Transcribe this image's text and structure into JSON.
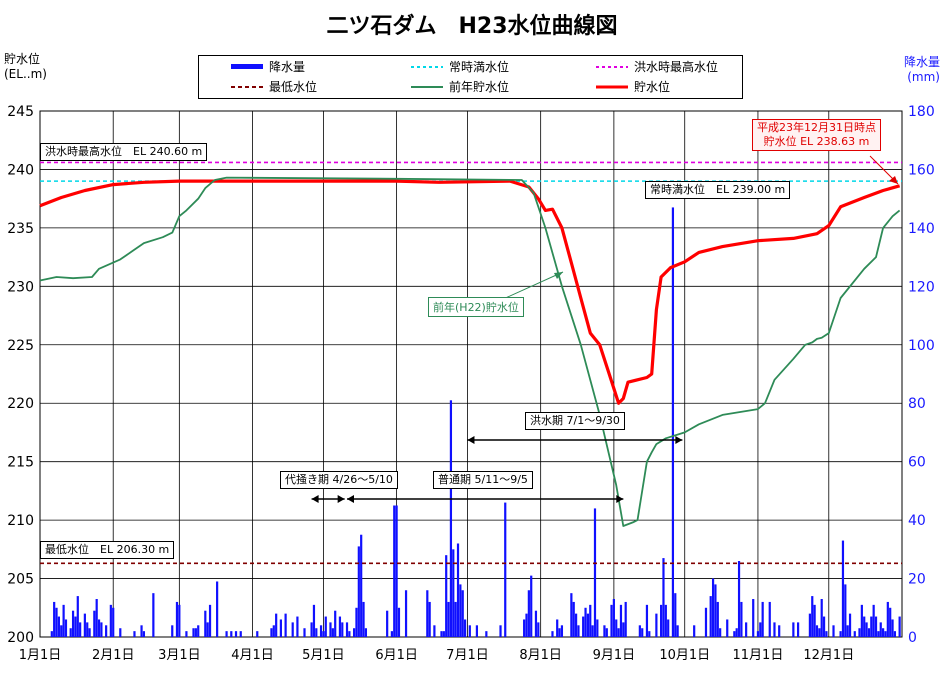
{
  "chart_data": {
    "type": "bar+line",
    "title": "二ツ石ダム　H23水位曲線図",
    "left_axis_title": [
      "貯水位",
      "(EL..m)"
    ],
    "right_axis_title": [
      "降水量",
      "(mm)"
    ],
    "ylim_left": [
      200,
      245
    ],
    "yticks_left": [
      "200",
      "205",
      "210",
      "215",
      "220",
      "225",
      "230",
      "235",
      "240",
      "245"
    ],
    "ylim_right": [
      0,
      180
    ],
    "yticks_right": [
      "0",
      "20",
      "40",
      "60",
      "80",
      "100",
      "120",
      "140",
      "160",
      "180"
    ],
    "xlim": [
      1,
      366
    ],
    "x_unit": "day_of_year_2011",
    "month_labels": [
      "1月1日",
      "2月1日",
      "3月1日",
      "4月1日",
      "5月1日",
      "6月1日",
      "7月1日",
      "8月1日",
      "9月1日",
      "10月1日",
      "11月1日",
      "12月1日"
    ],
    "month_days": [
      1,
      32,
      60,
      91,
      121,
      152,
      182,
      213,
      244,
      274,
      305,
      335
    ],
    "grid": true,
    "legend": {
      "position": "top-center",
      "items": [
        {
          "label": "降水量",
          "style": "bar",
          "color": "#1010ff"
        },
        {
          "label": "常時満水位",
          "style": "dashed",
          "color": "#00d8e8"
        },
        {
          "label": "洪水時最高水位",
          "style": "dashed",
          "color": "#e000e0"
        },
        {
          "label": "最低水位",
          "style": "dashed",
          "color": "#800000"
        },
        {
          "label": "前年貯水位",
          "style": "solid",
          "color": "#2e8b57"
        },
        {
          "label": "貯水位",
          "style": "solid-bold",
          "color": "#ff0000"
        }
      ]
    },
    "reference_lines": [
      {
        "name": "洪水時最高水位",
        "value": 240.6,
        "color": "#e000e0",
        "label": "洪水時最高水位　EL 240.60 m"
      },
      {
        "name": "常時満水位",
        "value": 239.0,
        "color": "#00d8e8",
        "label": "常時満水位　EL 239.00 m"
      },
      {
        "name": "最低水位",
        "value": 206.3,
        "color": "#800000",
        "label": "最低水位　EL 206.30 m"
      }
    ],
    "series": [
      {
        "name": "貯水位",
        "color": "#ff0000",
        "x": [
          1,
          10,
          20,
          32,
          45,
          60,
          91,
          121,
          152,
          170,
          200,
          208,
          212,
          215,
          218,
          222,
          226,
          230,
          234,
          238,
          242,
          246,
          248,
          250,
          258,
          260,
          262,
          264,
          268,
          274,
          280,
          290,
          305,
          320,
          330,
          335,
          340,
          350,
          358,
          365
        ],
        "y": [
          236.9,
          237.6,
          238.2,
          238.7,
          238.9,
          239.0,
          239.0,
          239.0,
          239.0,
          238.9,
          239.0,
          238.5,
          237.5,
          236.5,
          236.6,
          235.0,
          232.0,
          229.0,
          226.0,
          225.0,
          222.5,
          220.0,
          220.4,
          221.8,
          222.2,
          222.5,
          228.0,
          230.8,
          231.6,
          232.1,
          232.9,
          233.4,
          233.9,
          234.1,
          234.5,
          235.2,
          236.8,
          237.6,
          238.2,
          238.6
        ]
      },
      {
        "name": "前年貯水位",
        "color": "#2e8b57",
        "x": [
          1,
          8,
          15,
          23,
          26,
          35,
          40,
          45,
          53,
          57,
          60,
          63,
          68,
          71,
          75,
          80,
          152,
          205,
          210,
          215,
          222,
          230,
          238,
          245,
          248,
          252,
          254,
          256,
          258,
          260,
          262,
          266,
          274,
          280,
          290,
          305,
          308,
          312,
          320,
          325,
          328,
          330,
          332,
          335,
          340,
          350,
          355,
          358,
          362,
          365
        ],
        "y": [
          230.5,
          230.8,
          230.7,
          230.8,
          231.5,
          232.3,
          233.0,
          233.7,
          234.2,
          234.6,
          236.0,
          236.5,
          237.5,
          238.4,
          239.1,
          239.3,
          239.2,
          239.1,
          238.0,
          235.0,
          230.0,
          225.0,
          219.0,
          213.0,
          209.5,
          209.8,
          210.0,
          212.5,
          215.0,
          215.8,
          216.5,
          217.0,
          217.5,
          218.2,
          219.0,
          219.5,
          220.0,
          222.0,
          223.8,
          225.0,
          225.2,
          225.5,
          225.6,
          226.0,
          229.0,
          231.5,
          232.5,
          235.0,
          236.0,
          236.5
        ]
      }
    ],
    "rainfall_mm": [
      {
        "x": 6,
        "v": 2
      },
      {
        "x": 7,
        "v": 12
      },
      {
        "x": 8,
        "v": 10
      },
      {
        "x": 9,
        "v": 7
      },
      {
        "x": 10,
        "v": 4
      },
      {
        "x": 11,
        "v": 11
      },
      {
        "x": 12,
        "v": 6
      },
      {
        "x": 14,
        "v": 3
      },
      {
        "x": 15,
        "v": 9
      },
      {
        "x": 16,
        "v": 7
      },
      {
        "x": 17,
        "v": 14
      },
      {
        "x": 18,
        "v": 5
      },
      {
        "x": 20,
        "v": 8
      },
      {
        "x": 21,
        "v": 5
      },
      {
        "x": 22,
        "v": 3
      },
      {
        "x": 24,
        "v": 9
      },
      {
        "x": 25,
        "v": 13
      },
      {
        "x": 26,
        "v": 6
      },
      {
        "x": 27,
        "v": 5
      },
      {
        "x": 29,
        "v": 4
      },
      {
        "x": 31,
        "v": 11
      },
      {
        "x": 32,
        "v": 10
      },
      {
        "x": 35,
        "v": 3
      },
      {
        "x": 41,
        "v": 2
      },
      {
        "x": 44,
        "v": 4
      },
      {
        "x": 45,
        "v": 2
      },
      {
        "x": 49,
        "v": 15
      },
      {
        "x": 57,
        "v": 4
      },
      {
        "x": 59,
        "v": 12
      },
      {
        "x": 60,
        "v": 11
      },
      {
        "x": 63,
        "v": 2
      },
      {
        "x": 66,
        "v": 3
      },
      {
        "x": 67,
        "v": 3
      },
      {
        "x": 68,
        "v": 4
      },
      {
        "x": 71,
        "v": 9
      },
      {
        "x": 72,
        "v": 5
      },
      {
        "x": 73,
        "v": 11
      },
      {
        "x": 76,
        "v": 19
      },
      {
        "x": 80,
        "v": 2
      },
      {
        "x": 82,
        "v": 2
      },
      {
        "x": 84,
        "v": 2
      },
      {
        "x": 86,
        "v": 2
      },
      {
        "x": 93,
        "v": 2
      },
      {
        "x": 99,
        "v": 3
      },
      {
        "x": 100,
        "v": 4
      },
      {
        "x": 101,
        "v": 8
      },
      {
        "x": 103,
        "v": 6
      },
      {
        "x": 105,
        "v": 8
      },
      {
        "x": 108,
        "v": 5
      },
      {
        "x": 110,
        "v": 7
      },
      {
        "x": 113,
        "v": 3
      },
      {
        "x": 116,
        "v": 5
      },
      {
        "x": 117,
        "v": 11
      },
      {
        "x": 118,
        "v": 3
      },
      {
        "x": 120,
        "v": 4
      },
      {
        "x": 121,
        "v": 2
      },
      {
        "x": 122,
        "v": 7
      },
      {
        "x": 124,
        "v": 5
      },
      {
        "x": 125,
        "v": 3
      },
      {
        "x": 126,
        "v": 9
      },
      {
        "x": 128,
        "v": 7
      },
      {
        "x": 129,
        "v": 5
      },
      {
        "x": 131,
        "v": 5
      },
      {
        "x": 132,
        "v": 2
      },
      {
        "x": 134,
        "v": 3
      },
      {
        "x": 135,
        "v": 10
      },
      {
        "x": 136,
        "v": 31
      },
      {
        "x": 137,
        "v": 35
      },
      {
        "x": 138,
        "v": 12
      },
      {
        "x": 139,
        "v": 3
      },
      {
        "x": 148,
        "v": 9
      },
      {
        "x": 150,
        "v": 2
      },
      {
        "x": 151,
        "v": 45
      },
      {
        "x": 152,
        "v": 45
      },
      {
        "x": 153,
        "v": 10
      },
      {
        "x": 156,
        "v": 16
      },
      {
        "x": 165,
        "v": 16
      },
      {
        "x": 166,
        "v": 12
      },
      {
        "x": 168,
        "v": 4
      },
      {
        "x": 171,
        "v": 2
      },
      {
        "x": 172,
        "v": 2
      },
      {
        "x": 173,
        "v": 28
      },
      {
        "x": 174,
        "v": 12
      },
      {
        "x": 175,
        "v": 81
      },
      {
        "x": 176,
        "v": 30
      },
      {
        "x": 177,
        "v": 12
      },
      {
        "x": 178,
        "v": 32
      },
      {
        "x": 179,
        "v": 18
      },
      {
        "x": 180,
        "v": 16
      },
      {
        "x": 181,
        "v": 6
      },
      {
        "x": 183,
        "v": 4
      },
      {
        "x": 186,
        "v": 4
      },
      {
        "x": 190,
        "v": 2
      },
      {
        "x": 196,
        "v": 4
      },
      {
        "x": 198,
        "v": 46
      },
      {
        "x": 206,
        "v": 6
      },
      {
        "x": 207,
        "v": 8
      },
      {
        "x": 208,
        "v": 16
      },
      {
        "x": 209,
        "v": 21
      },
      {
        "x": 211,
        "v": 9
      },
      {
        "x": 212,
        "v": 5
      },
      {
        "x": 218,
        "v": 2
      },
      {
        "x": 220,
        "v": 6
      },
      {
        "x": 221,
        "v": 3
      },
      {
        "x": 222,
        "v": 4
      },
      {
        "x": 226,
        "v": 15
      },
      {
        "x": 227,
        "v": 12
      },
      {
        "x": 228,
        "v": 8
      },
      {
        "x": 229,
        "v": 4
      },
      {
        "x": 231,
        "v": 7
      },
      {
        "x": 232,
        "v": 10
      },
      {
        "x": 233,
        "v": 8
      },
      {
        "x": 234,
        "v": 11
      },
      {
        "x": 235,
        "v": 4
      },
      {
        "x": 236,
        "v": 44
      },
      {
        "x": 237,
        "v": 6
      },
      {
        "x": 240,
        "v": 4
      },
      {
        "x": 241,
        "v": 3
      },
      {
        "x": 243,
        "v": 11
      },
      {
        "x": 244,
        "v": 13
      },
      {
        "x": 245,
        "v": 6
      },
      {
        "x": 246,
        "v": 3
      },
      {
        "x": 247,
        "v": 11
      },
      {
        "x": 248,
        "v": 5
      },
      {
        "x": 249,
        "v": 12
      },
      {
        "x": 255,
        "v": 4
      },
      {
        "x": 256,
        "v": 3
      },
      {
        "x": 258,
        "v": 11
      },
      {
        "x": 259,
        "v": 2
      },
      {
        "x": 262,
        "v": 8
      },
      {
        "x": 264,
        "v": 11
      },
      {
        "x": 265,
        "v": 27
      },
      {
        "x": 266,
        "v": 11
      },
      {
        "x": 267,
        "v": 6
      },
      {
        "x": 269,
        "v": 147
      },
      {
        "x": 270,
        "v": 15
      },
      {
        "x": 271,
        "v": 4
      },
      {
        "x": 278,
        "v": 4
      },
      {
        "x": 283,
        "v": 10
      },
      {
        "x": 285,
        "v": 14
      },
      {
        "x": 286,
        "v": 20
      },
      {
        "x": 287,
        "v": 18
      },
      {
        "x": 288,
        "v": 12
      },
      {
        "x": 289,
        "v": 3
      },
      {
        "x": 292,
        "v": 6
      },
      {
        "x": 295,
        "v": 2
      },
      {
        "x": 296,
        "v": 3
      },
      {
        "x": 297,
        "v": 26
      },
      {
        "x": 298,
        "v": 12
      },
      {
        "x": 300,
        "v": 5
      },
      {
        "x": 303,
        "v": 13
      },
      {
        "x": 305,
        "v": 2
      },
      {
        "x": 306,
        "v": 5
      },
      {
        "x": 307,
        "v": 12
      },
      {
        "x": 310,
        "v": 12
      },
      {
        "x": 312,
        "v": 5
      },
      {
        "x": 314,
        "v": 4
      },
      {
        "x": 320,
        "v": 5
      },
      {
        "x": 322,
        "v": 5
      },
      {
        "x": 327,
        "v": 8
      },
      {
        "x": 328,
        "v": 14
      },
      {
        "x": 329,
        "v": 11
      },
      {
        "x": 330,
        "v": 4
      },
      {
        "x": 331,
        "v": 3
      },
      {
        "x": 332,
        "v": 13
      },
      {
        "x": 333,
        "v": 7
      },
      {
        "x": 334,
        "v": 2
      },
      {
        "x": 337,
        "v": 4
      },
      {
        "x": 340,
        "v": 2
      },
      {
        "x": 341,
        "v": 33
      },
      {
        "x": 342,
        "v": 18
      },
      {
        "x": 343,
        "v": 4
      },
      {
        "x": 344,
        "v": 8
      },
      {
        "x": 346,
        "v": 2
      },
      {
        "x": 348,
        "v": 3
      },
      {
        "x": 349,
        "v": 11
      },
      {
        "x": 350,
        "v": 7
      },
      {
        "x": 351,
        "v": 5
      },
      {
        "x": 352,
        "v": 3
      },
      {
        "x": 353,
        "v": 7
      },
      {
        "x": 354,
        "v": 11
      },
      {
        "x": 355,
        "v": 7
      },
      {
        "x": 356,
        "v": 2
      },
      {
        "x": 357,
        "v": 5
      },
      {
        "x": 358,
        "v": 3
      },
      {
        "x": 359,
        "v": 2
      },
      {
        "x": 360,
        "v": 12
      },
      {
        "x": 361,
        "v": 10
      },
      {
        "x": 362,
        "v": 6
      },
      {
        "x": 363,
        "v": 2
      },
      {
        "x": 365,
        "v": 7
      }
    ],
    "annotations": [
      {
        "text": "平成23年12月31日時点",
        "color": "#e00000"
      },
      {
        "text": "貯水位 EL 238.63 m",
        "color": "#e00000"
      },
      {
        "text": "前年(H22)貯水位",
        "color": "#2e8b57"
      }
    ],
    "periods": [
      {
        "label": "代掻き期 4/26～5/10",
        "x_start": 116,
        "x_end": 130
      },
      {
        "label": "普通期 5/11～9/5",
        "x_start": 131,
        "x_end": 248
      },
      {
        "label": "洪水期 7/1～9/30",
        "x_start": 182,
        "x_end": 273
      }
    ]
  }
}
